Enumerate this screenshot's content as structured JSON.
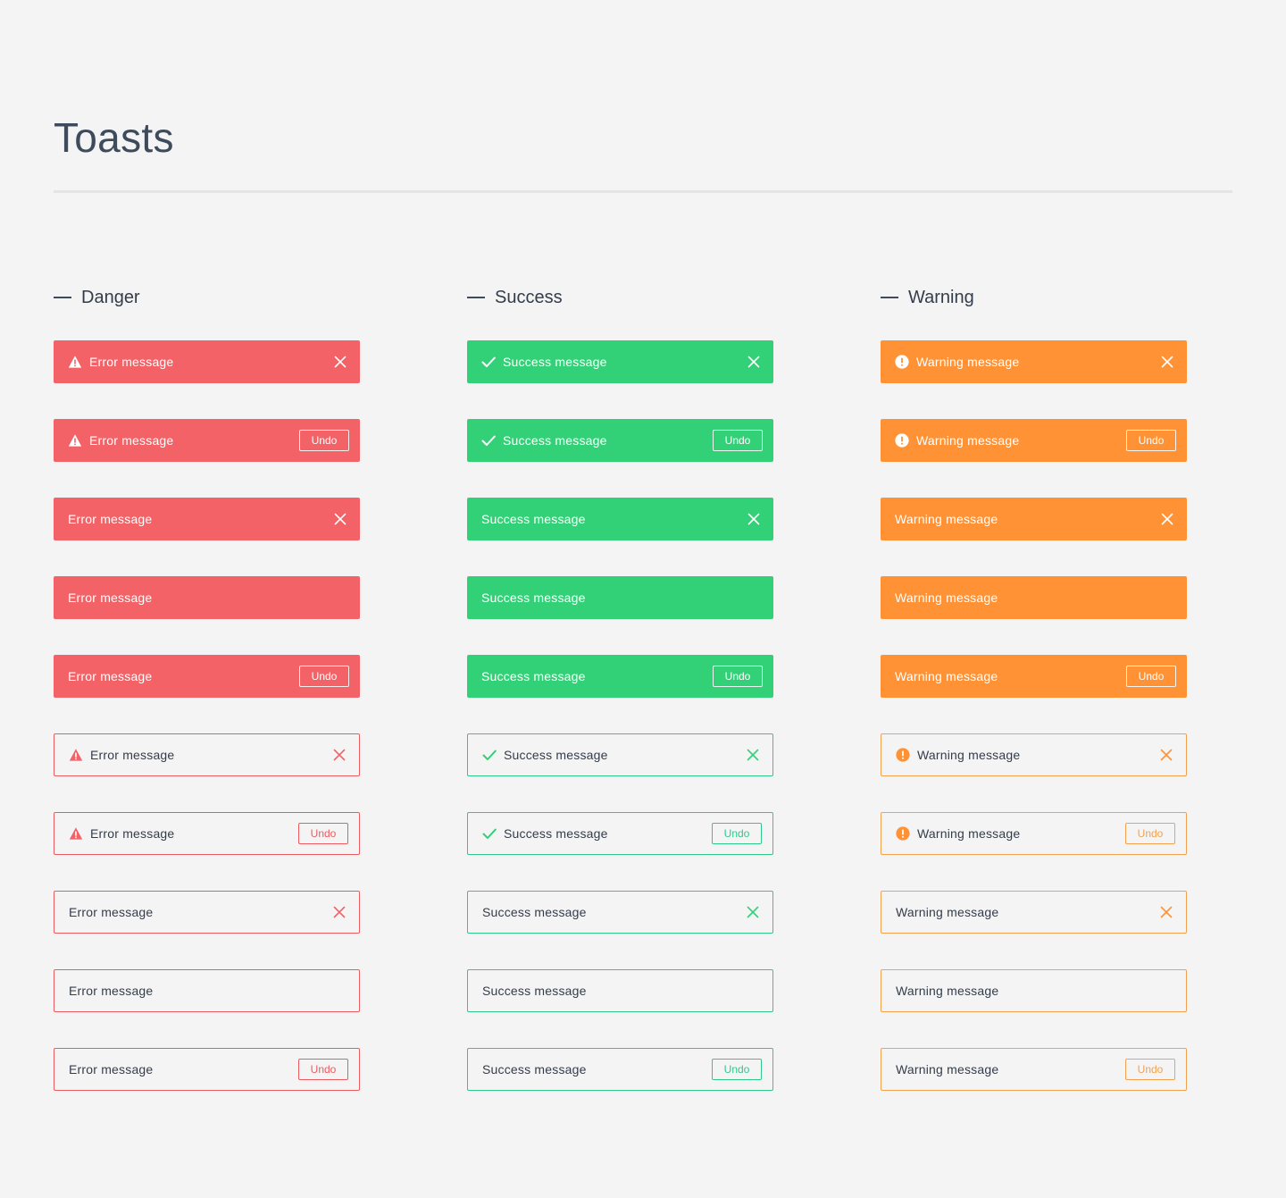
{
  "page": {
    "title": "Toasts"
  },
  "columns": [
    {
      "key": "danger",
      "title": "Danger",
      "message": "Error message",
      "icon": "warning-triangle-icon",
      "color": "#f26266"
    },
    {
      "key": "success",
      "title": "Success",
      "message": "Success message",
      "icon": "checkmark-icon",
      "color": "#32d177"
    },
    {
      "key": "warning",
      "title": "Warning",
      "message": "Warning message",
      "icon": "exclamation-circle-icon",
      "color": "#ff9235"
    }
  ],
  "undo_label": "Undo",
  "variants": [
    {
      "style": "solid",
      "icon": true,
      "action": "close"
    },
    {
      "style": "solid",
      "icon": true,
      "action": "undo"
    },
    {
      "style": "solid",
      "icon": false,
      "action": "close"
    },
    {
      "style": "solid",
      "icon": false,
      "action": "none"
    },
    {
      "style": "solid",
      "icon": false,
      "action": "undo"
    },
    {
      "style": "outline",
      "icon": true,
      "action": "close"
    },
    {
      "style": "outline",
      "icon": true,
      "action": "undo"
    },
    {
      "style": "outline",
      "icon": false,
      "action": "close"
    },
    {
      "style": "outline",
      "icon": false,
      "action": "none"
    },
    {
      "style": "outline",
      "icon": false,
      "action": "undo"
    }
  ]
}
